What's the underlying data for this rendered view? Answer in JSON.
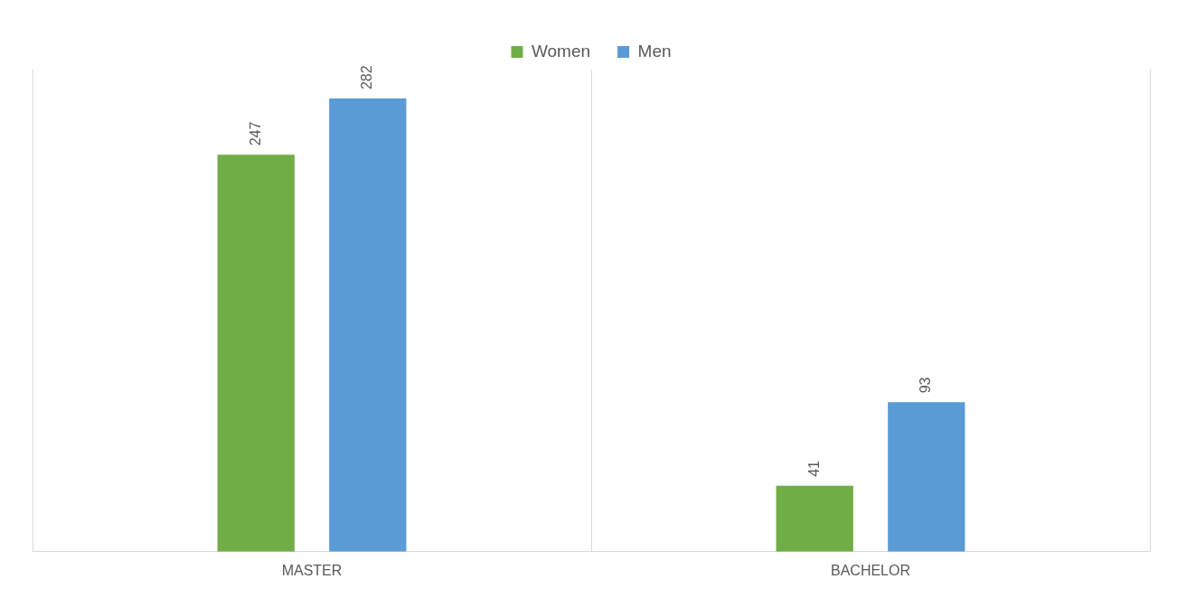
{
  "chart_data": {
    "type": "bar",
    "categories": [
      "MASTER",
      "BACHELOR"
    ],
    "series": [
      {
        "name": "Women",
        "color": "#70ad47",
        "values": [
          247,
          41
        ]
      },
      {
        "name": "Men",
        "color": "#5b9bd5",
        "values": [
          282,
          93
        ]
      }
    ],
    "data_labels": true,
    "grid": "x",
    "legend": "top"
  }
}
